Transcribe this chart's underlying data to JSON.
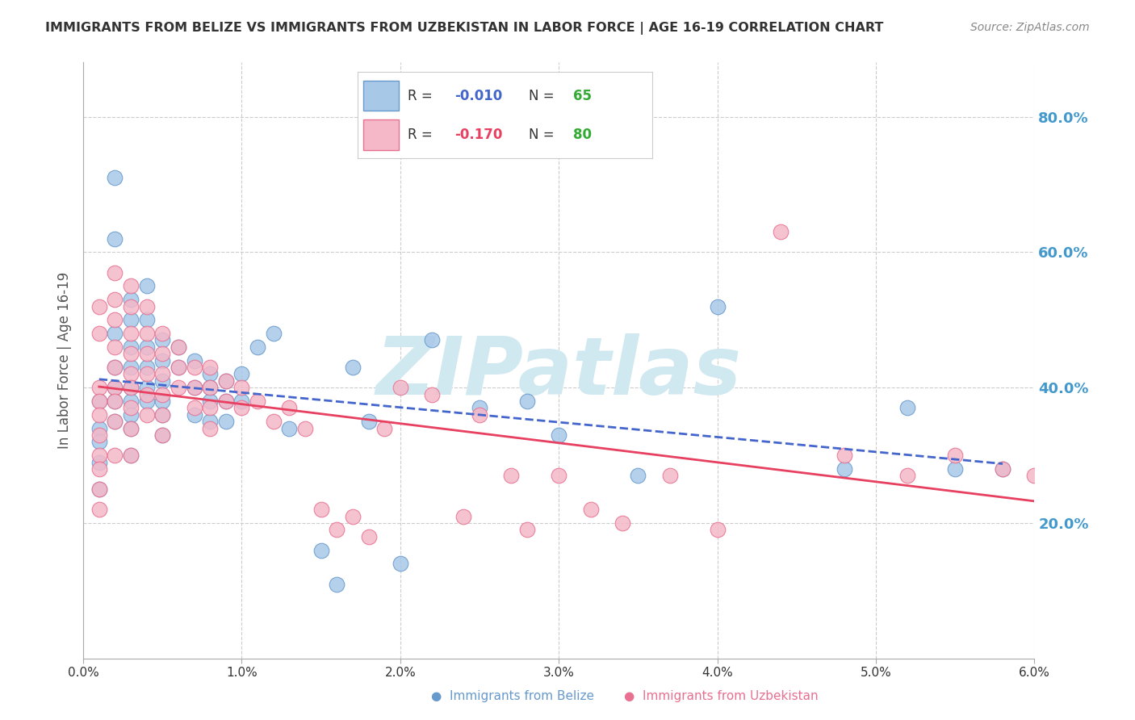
{
  "title": "IMMIGRANTS FROM BELIZE VS IMMIGRANTS FROM UZBEKISTAN IN LABOR FORCE | AGE 16-19 CORRELATION CHART",
  "source_text": "Source: ZipAtlas.com",
  "xlabel": "",
  "ylabel": "In Labor Force | Age 16-19",
  "right_ytick_labels": [
    "20.0%",
    "40.0%",
    "60.0%",
    "80.0%"
  ],
  "right_ytick_values": [
    0.2,
    0.4,
    0.6,
    0.8
  ],
  "xlim": [
    0.0,
    0.06
  ],
  "ylim": [
    0.0,
    0.88
  ],
  "xtick_labels": [
    "0.0%",
    "1.0%",
    "2.0%",
    "3.0%",
    "4.0%",
    "5.0%",
    "6.0%"
  ],
  "xtick_values": [
    0.0,
    0.01,
    0.02,
    0.03,
    0.04,
    0.05,
    0.06
  ],
  "grid_color": "#cccccc",
  "background_color": "#ffffff",
  "watermark_text": "ZIPatlas",
  "watermark_color": "#d0e8f0",
  "series": [
    {
      "name": "Immigrants from Belize",
      "color": "#a8c8e8",
      "edge_color": "#6699cc",
      "R": -0.01,
      "N": 65,
      "trend_color": "#4466cc",
      "trend_style": "--",
      "x": [
        0.001,
        0.001,
        0.001,
        0.001,
        0.001,
        0.002,
        0.002,
        0.002,
        0.002,
        0.002,
        0.002,
        0.002,
        0.003,
        0.003,
        0.003,
        0.003,
        0.003,
        0.003,
        0.003,
        0.003,
        0.003,
        0.004,
        0.004,
        0.004,
        0.004,
        0.004,
        0.004,
        0.005,
        0.005,
        0.005,
        0.005,
        0.005,
        0.005,
        0.006,
        0.006,
        0.007,
        0.007,
        0.007,
        0.008,
        0.008,
        0.008,
        0.008,
        0.009,
        0.009,
        0.009,
        0.01,
        0.01,
        0.011,
        0.012,
        0.013,
        0.015,
        0.016,
        0.017,
        0.018,
        0.02,
        0.022,
        0.025,
        0.028,
        0.03,
        0.035,
        0.04,
        0.048,
        0.052,
        0.055,
        0.058
      ],
      "y": [
        0.38,
        0.34,
        0.32,
        0.29,
        0.25,
        0.71,
        0.62,
        0.48,
        0.43,
        0.4,
        0.38,
        0.35,
        0.53,
        0.5,
        0.46,
        0.43,
        0.4,
        0.38,
        0.36,
        0.34,
        0.3,
        0.55,
        0.5,
        0.46,
        0.43,
        0.4,
        0.38,
        0.47,
        0.44,
        0.41,
        0.38,
        0.36,
        0.33,
        0.46,
        0.43,
        0.44,
        0.4,
        0.36,
        0.42,
        0.4,
        0.38,
        0.35,
        0.41,
        0.38,
        0.35,
        0.42,
        0.38,
        0.46,
        0.48,
        0.34,
        0.16,
        0.11,
        0.43,
        0.35,
        0.14,
        0.47,
        0.37,
        0.38,
        0.33,
        0.27,
        0.52,
        0.28,
        0.37,
        0.28,
        0.28
      ]
    },
    {
      "name": "Immigrants from Uzbekistan",
      "color": "#f4b8c8",
      "edge_color": "#e87090",
      "R": -0.17,
      "N": 80,
      "trend_color": "#e84060",
      "trend_style": "-",
      "x": [
        0.001,
        0.001,
        0.001,
        0.001,
        0.001,
        0.001,
        0.001,
        0.001,
        0.001,
        0.001,
        0.002,
        0.002,
        0.002,
        0.002,
        0.002,
        0.002,
        0.002,
        0.002,
        0.002,
        0.003,
        0.003,
        0.003,
        0.003,
        0.003,
        0.003,
        0.003,
        0.003,
        0.003,
        0.004,
        0.004,
        0.004,
        0.004,
        0.004,
        0.004,
        0.005,
        0.005,
        0.005,
        0.005,
        0.005,
        0.005,
        0.006,
        0.006,
        0.006,
        0.007,
        0.007,
        0.007,
        0.008,
        0.008,
        0.008,
        0.008,
        0.009,
        0.009,
        0.01,
        0.01,
        0.011,
        0.012,
        0.013,
        0.014,
        0.015,
        0.016,
        0.017,
        0.018,
        0.019,
        0.02,
        0.022,
        0.024,
        0.025,
        0.027,
        0.028,
        0.03,
        0.032,
        0.034,
        0.037,
        0.04,
        0.044,
        0.048,
        0.052,
        0.055,
        0.058,
        0.06
      ],
      "y": [
        0.4,
        0.38,
        0.36,
        0.33,
        0.3,
        0.28,
        0.25,
        0.22,
        0.52,
        0.48,
        0.57,
        0.53,
        0.5,
        0.46,
        0.43,
        0.4,
        0.38,
        0.35,
        0.3,
        0.55,
        0.52,
        0.48,
        0.45,
        0.42,
        0.4,
        0.37,
        0.34,
        0.3,
        0.52,
        0.48,
        0.45,
        0.42,
        0.39,
        0.36,
        0.48,
        0.45,
        0.42,
        0.39,
        0.36,
        0.33,
        0.46,
        0.43,
        0.4,
        0.43,
        0.4,
        0.37,
        0.43,
        0.4,
        0.37,
        0.34,
        0.41,
        0.38,
        0.4,
        0.37,
        0.38,
        0.35,
        0.37,
        0.34,
        0.22,
        0.19,
        0.21,
        0.18,
        0.34,
        0.4,
        0.39,
        0.21,
        0.36,
        0.27,
        0.19,
        0.27,
        0.22,
        0.2,
        0.27,
        0.19,
        0.63,
        0.3,
        0.27,
        0.3,
        0.28,
        0.27
      ]
    }
  ],
  "legend_box_color": "#ffffff",
  "legend_R_color_belize": "#4466cc",
  "legend_R_color_uzbek": "#e84060",
  "legend_N_color": "#33aa33",
  "title_color": "#333333",
  "axis_label_color": "#555555",
  "right_axis_label_color": "#4499cc"
}
